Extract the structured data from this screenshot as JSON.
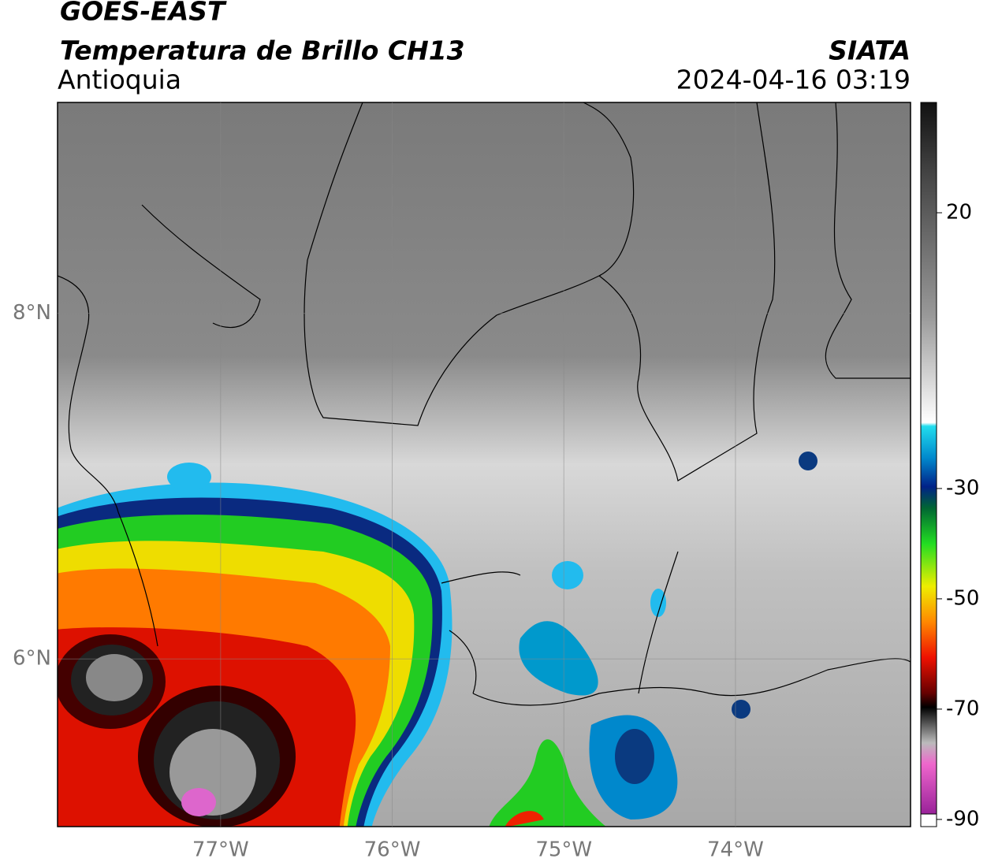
{
  "header": {
    "title": "GOES-EAST",
    "subtitle": "Temperatura de Brillo CH13",
    "region": "Antioquia",
    "source": "SIATA",
    "datetime": "2024-04-16 03:19"
  },
  "map": {
    "lonlim": [
      -77.95,
      -72.98
    ],
    "latlim": [
      5.03,
      9.22
    ],
    "lon_ticks": [
      {
        "value": -77,
        "label": "77°W"
      },
      {
        "value": -76,
        "label": "76°W"
      },
      {
        "value": -75,
        "label": "75°W"
      },
      {
        "value": -74,
        "label": "74°W"
      }
    ],
    "lat_ticks": [
      {
        "value": 8,
        "label": "8°N"
      },
      {
        "value": 6,
        "label": "6°N"
      }
    ],
    "grid": true
  },
  "colorbar": {
    "lim": [
      -91.3,
      40
    ],
    "ticks": [
      20,
      -30,
      -50,
      -70,
      -90
    ]
  }
}
